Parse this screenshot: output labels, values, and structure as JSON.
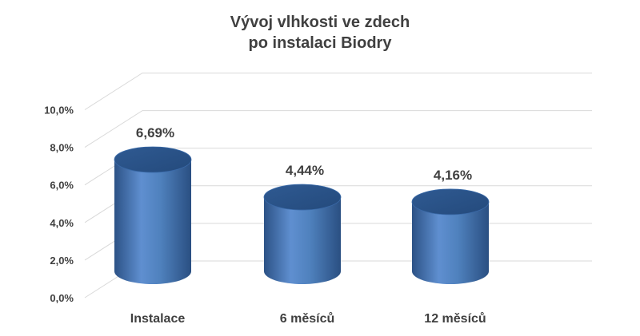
{
  "chart_data": {
    "type": "bar",
    "style": "3d-cylinder",
    "title": [
      "Vývoj vlhkosti ve zdech",
      "po instalaci Biodry"
    ],
    "categories": [
      "Instalace",
      "6 měsíců",
      "12 měsíců"
    ],
    "values": [
      6.69,
      4.44,
      4.16
    ],
    "data_labels": [
      "6,69%",
      "4,44%",
      "4,16%"
    ],
    "ylim": [
      0,
      10
    ],
    "yticks": [
      0,
      2,
      4,
      6,
      8,
      10
    ],
    "ytick_labels": [
      "0,0%",
      "2,0%",
      "4,0%",
      "6,0%",
      "8,0%",
      "10,0%"
    ],
    "xlabel": "",
    "ylabel": "",
    "grid": true,
    "legend": "none",
    "colors": {
      "bar": "#4f81bd",
      "bar_dark": "#2c5286",
      "bar_light": "#6f9ad6",
      "grid": "#d9d9d9",
      "text": "#404040"
    }
  }
}
